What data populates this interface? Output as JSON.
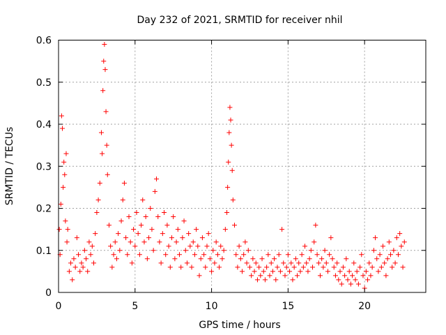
{
  "chart_data": {
    "type": "scatter",
    "title": "Day 232 of 2021, SRMTID for receiver nhil",
    "xlabel": "GPS time / hours",
    "ylabel": "SRMTID / TECUs",
    "xlim": [
      0,
      24
    ],
    "ylim": [
      0,
      0.6
    ],
    "grid": true,
    "marker": "+",
    "color": "#ff0000",
    "x_ticks": [
      0,
      5,
      10,
      15,
      20
    ],
    "x_tick_labels": [
      "0",
      "5",
      "10",
      "15",
      "20"
    ],
    "y_ticks": [
      0,
      0.1,
      0.2,
      0.3,
      0.4,
      0.5,
      0.6
    ],
    "y_tick_labels": [
      "0",
      "0.1",
      "0.2",
      "0.3",
      "0.4",
      "0.5",
      "0.6"
    ],
    "series": [
      {
        "name": "SRMTID",
        "points": [
          [
            0.05,
            0.15
          ],
          [
            0.1,
            0.09
          ],
          [
            0.15,
            0.21
          ],
          [
            0.2,
            0.42
          ],
          [
            0.25,
            0.39
          ],
          [
            0.3,
            0.25
          ],
          [
            0.35,
            0.31
          ],
          [
            0.4,
            0.28
          ],
          [
            0.45,
            0.17
          ],
          [
            0.5,
            0.33
          ],
          [
            0.55,
            0.12
          ],
          [
            0.6,
            0.15
          ],
          [
            0.7,
            0.05
          ],
          [
            0.8,
            0.07
          ],
          [
            0.9,
            0.03
          ],
          [
            1.0,
            0.08
          ],
          [
            1.1,
            0.06
          ],
          [
            1.2,
            0.13
          ],
          [
            1.3,
            0.09
          ],
          [
            1.4,
            0.05
          ],
          [
            1.5,
            0.07
          ],
          [
            1.6,
            0.06
          ],
          [
            1.7,
            0.1
          ],
          [
            1.8,
            0.08
          ],
          [
            1.9,
            0.05
          ],
          [
            2.0,
            0.12
          ],
          [
            2.1,
            0.09
          ],
          [
            2.2,
            0.11
          ],
          [
            2.3,
            0.07
          ],
          [
            2.4,
            0.14
          ],
          [
            2.5,
            0.19
          ],
          [
            2.6,
            0.22
          ],
          [
            2.7,
            0.26
          ],
          [
            2.8,
            0.38
          ],
          [
            2.85,
            0.33
          ],
          [
            2.9,
            0.48
          ],
          [
            2.95,
            0.55
          ],
          [
            3.0,
            0.59
          ],
          [
            3.05,
            0.53
          ],
          [
            3.1,
            0.43
          ],
          [
            3.15,
            0.35
          ],
          [
            3.2,
            0.28
          ],
          [
            3.3,
            0.16
          ],
          [
            3.4,
            0.11
          ],
          [
            3.5,
            0.06
          ],
          [
            3.6,
            0.09
          ],
          [
            3.7,
            0.12
          ],
          [
            3.8,
            0.08
          ],
          [
            3.9,
            0.14
          ],
          [
            4.0,
            0.1
          ],
          [
            4.1,
            0.17
          ],
          [
            4.2,
            0.22
          ],
          [
            4.3,
            0.26
          ],
          [
            4.4,
            0.13
          ],
          [
            4.5,
            0.09
          ],
          [
            4.6,
            0.18
          ],
          [
            4.7,
            0.12
          ],
          [
            4.8,
            0.07
          ],
          [
            4.9,
            0.15
          ],
          [
            5.0,
            0.11
          ],
          [
            5.1,
            0.19
          ],
          [
            5.2,
            0.14
          ],
          [
            5.3,
            0.09
          ],
          [
            5.4,
            0.16
          ],
          [
            5.5,
            0.22
          ],
          [
            5.6,
            0.12
          ],
          [
            5.7,
            0.18
          ],
          [
            5.8,
            0.08
          ],
          [
            5.9,
            0.13
          ],
          [
            6.0,
            0.2
          ],
          [
            6.1,
            0.15
          ],
          [
            6.2,
            0.1
          ],
          [
            6.3,
            0.24
          ],
          [
            6.4,
            0.27
          ],
          [
            6.5,
            0.18
          ],
          [
            6.6,
            0.12
          ],
          [
            6.7,
            0.07
          ],
          [
            6.8,
            0.14
          ],
          [
            6.9,
            0.19
          ],
          [
            7.0,
            0.09
          ],
          [
            7.1,
            0.16
          ],
          [
            7.2,
            0.11
          ],
          [
            7.3,
            0.06
          ],
          [
            7.4,
            0.13
          ],
          [
            7.5,
            0.18
          ],
          [
            7.6,
            0.08
          ],
          [
            7.7,
            0.12
          ],
          [
            7.8,
            0.15
          ],
          [
            7.9,
            0.09
          ],
          [
            8.0,
            0.06
          ],
          [
            8.1,
            0.13
          ],
          [
            8.2,
            0.17
          ],
          [
            8.3,
            0.1
          ],
          [
            8.4,
            0.07
          ],
          [
            8.5,
            0.14
          ],
          [
            8.6,
            0.11
          ],
          [
            8.7,
            0.06
          ],
          [
            8.8,
            0.12
          ],
          [
            8.9,
            0.09
          ],
          [
            9.0,
            0.15
          ],
          [
            9.1,
            0.11
          ],
          [
            9.2,
            0.04
          ],
          [
            9.3,
            0.08
          ],
          [
            9.4,
            0.13
          ],
          [
            9.5,
            0.09
          ],
          [
            9.6,
            0.06
          ],
          [
            9.7,
            0.11
          ],
          [
            9.8,
            0.14
          ],
          [
            9.9,
            0.08
          ],
          [
            10.0,
            0.05
          ],
          [
            10.1,
            0.1
          ],
          [
            10.2,
            0.07
          ],
          [
            10.3,
            0.12
          ],
          [
            10.4,
            0.09
          ],
          [
            10.5,
            0.06
          ],
          [
            10.6,
            0.11
          ],
          [
            10.7,
            0.08
          ],
          [
            10.8,
            0.1
          ],
          [
            10.9,
            0.15
          ],
          [
            11.0,
            0.19
          ],
          [
            11.05,
            0.25
          ],
          [
            11.1,
            0.31
          ],
          [
            11.15,
            0.38
          ],
          [
            11.2,
            0.44
          ],
          [
            11.25,
            0.41
          ],
          [
            11.3,
            0.35
          ],
          [
            11.35,
            0.29
          ],
          [
            11.4,
            0.22
          ],
          [
            11.5,
            0.16
          ],
          [
            11.6,
            0.09
          ],
          [
            11.7,
            0.06
          ],
          [
            11.8,
            0.11
          ],
          [
            11.9,
            0.08
          ],
          [
            12.0,
            0.05
          ],
          [
            12.1,
            0.09
          ],
          [
            12.2,
            0.12
          ],
          [
            12.3,
            0.07
          ],
          [
            12.4,
            0.1
          ],
          [
            12.5,
            0.06
          ],
          [
            12.6,
            0.04
          ],
          [
            12.7,
            0.08
          ],
          [
            12.8,
            0.05
          ],
          [
            12.9,
            0.07
          ],
          [
            13.0,
            0.03
          ],
          [
            13.1,
            0.06
          ],
          [
            13.2,
            0.04
          ],
          [
            13.3,
            0.08
          ],
          [
            13.4,
            0.05
          ],
          [
            13.5,
            0.03
          ],
          [
            13.6,
            0.06
          ],
          [
            13.7,
            0.09
          ],
          [
            13.8,
            0.04
          ],
          [
            13.9,
            0.07
          ],
          [
            14.0,
            0.05
          ],
          [
            14.1,
            0.08
          ],
          [
            14.2,
            0.03
          ],
          [
            14.3,
            0.06
          ],
          [
            14.4,
            0.09
          ],
          [
            14.5,
            0.05
          ],
          [
            14.6,
            0.15
          ],
          [
            14.7,
            0.07
          ],
          [
            14.8,
            0.04
          ],
          [
            14.9,
            0.06
          ],
          [
            15.0,
            0.09
          ],
          [
            15.1,
            0.05
          ],
          [
            15.2,
            0.07
          ],
          [
            15.3,
            0.03
          ],
          [
            15.4,
            0.06
          ],
          [
            15.5,
            0.08
          ],
          [
            15.6,
            0.04
          ],
          [
            15.7,
            0.07
          ],
          [
            15.8,
            0.05
          ],
          [
            15.9,
            0.09
          ],
          [
            16.0,
            0.06
          ],
          [
            16.1,
            0.11
          ],
          [
            16.2,
            0.07
          ],
          [
            16.3,
            0.05
          ],
          [
            16.4,
            0.08
          ],
          [
            16.5,
            0.1
          ],
          [
            16.6,
            0.06
          ],
          [
            16.7,
            0.12
          ],
          [
            16.8,
            0.16
          ],
          [
            16.9,
            0.09
          ],
          [
            17.0,
            0.07
          ],
          [
            17.1,
            0.04
          ],
          [
            17.2,
            0.08
          ],
          [
            17.3,
            0.06
          ],
          [
            17.4,
            0.1
          ],
          [
            17.5,
            0.07
          ],
          [
            17.6,
            0.05
          ],
          [
            17.7,
            0.09
          ],
          [
            17.8,
            0.13
          ],
          [
            17.9,
            0.08
          ],
          [
            18.0,
            0.06
          ],
          [
            18.1,
            0.04
          ],
          [
            18.2,
            0.07
          ],
          [
            18.3,
            0.03
          ],
          [
            18.4,
            0.05
          ],
          [
            18.5,
            0.02
          ],
          [
            18.6,
            0.06
          ],
          [
            18.7,
            0.04
          ],
          [
            18.8,
            0.08
          ],
          [
            18.9,
            0.03
          ],
          [
            19.0,
            0.05
          ],
          [
            19.1,
            0.02
          ],
          [
            19.2,
            0.04
          ],
          [
            19.3,
            0.07
          ],
          [
            19.4,
            0.03
          ],
          [
            19.5,
            0.05
          ],
          [
            19.6,
            0.02
          ],
          [
            19.7,
            0.06
          ],
          [
            19.8,
            0.09
          ],
          [
            19.9,
            0.04
          ],
          [
            20.0,
            0.01
          ],
          [
            20.1,
            0.05
          ],
          [
            20.2,
            0.03
          ],
          [
            20.3,
            0.07
          ],
          [
            20.4,
            0.04
          ],
          [
            20.5,
            0.06
          ],
          [
            20.6,
            0.1
          ],
          [
            20.7,
            0.13
          ],
          [
            20.8,
            0.08
          ],
          [
            20.9,
            0.05
          ],
          [
            21.0,
            0.09
          ],
          [
            21.1,
            0.06
          ],
          [
            21.2,
            0.11
          ],
          [
            21.3,
            0.07
          ],
          [
            21.4,
            0.04
          ],
          [
            21.5,
            0.08
          ],
          [
            21.6,
            0.12
          ],
          [
            21.7,
            0.09
          ],
          [
            21.8,
            0.06
          ],
          [
            21.9,
            0.1
          ],
          [
            22.0,
            0.07
          ],
          [
            22.1,
            0.13
          ],
          [
            22.2,
            0.09
          ],
          [
            22.3,
            0.14
          ],
          [
            22.4,
            0.11
          ],
          [
            22.5,
            0.06
          ],
          [
            22.6,
            0.12
          ]
        ]
      }
    ]
  }
}
